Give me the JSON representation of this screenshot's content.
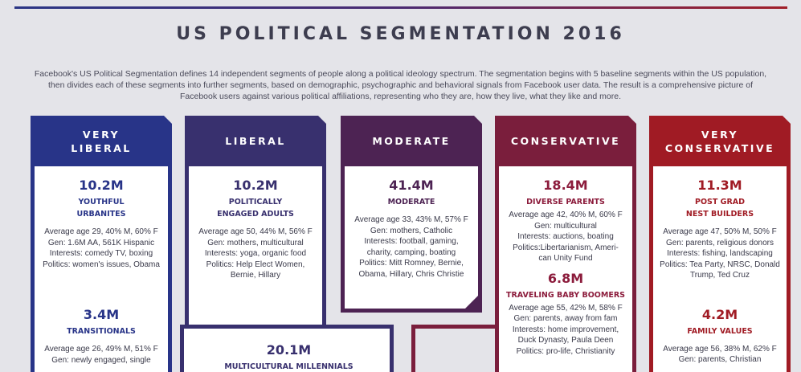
{
  "title": "US POLITICAL SEGMENTATION 2016",
  "intro": "Facebook's US Political Segmentation defines 14 independent segments of people along a political ideology spectrum. The segmentation begins with 5 baseline segments within the US population, then divides each of these segments into further segments, based on demographic, psychographic and behavioral signals from Facebook user data. The result is a comprehensive picture of Facebook users against various political affiliations, representing who they are, how they live, what they like and more.",
  "colors": {
    "very_liberal": "#283488",
    "liberal": "#38306e",
    "moderate": "#4d2353",
    "conservative": "#7a1e3c",
    "very_conservative": "#a01b24"
  },
  "columns": [
    {
      "header": "VERY\nLIBERAL",
      "segments": [
        {
          "count": "10.2M",
          "name": "YOUTHFUL\nURBANITES",
          "desc": "Average age 29, 40% M, 60% F\nGen: 1.6M AA, 561K Hispanic\nInterests: comedy TV, boxing\nPolitics: women's issues, Obama"
        },
        {
          "count": "3.4M",
          "name": "TRANSITIONALS",
          "desc": "Average age 26, 49% M, 51% F\nGen: newly engaged, single"
        }
      ]
    },
    {
      "header": "LIBERAL",
      "segments": [
        {
          "count": "10.2M",
          "name": "POLITICALLY\nENGAGED ADULTS",
          "desc": "Average age 50, 44% M, 56% F\nGen: mothers, multicultural\nInterests: yoga, organic food\nPolitics: Help Elect Women,\nBernie, Hillary"
        }
      ]
    },
    {
      "header": "MODERATE",
      "segments": [
        {
          "count": "41.4M",
          "name": "MODERATE",
          "desc": "Average age 33, 43% M, 57% F\nGen: mothers, Catholic\nInterests: football, gaming,\ncharity, camping, boating\nPolitics: Mitt Romney, Bernie,\nObama, Hillary, Chris Christie"
        }
      ]
    },
    {
      "header": "CONSERVATIVE",
      "segments": [
        {
          "count": "18.4M",
          "name": "DIVERSE PARENTS",
          "desc": "Average age 42, 40% M, 60% F\nGen: multicultural\nInterests: auctions, boating\nPolitics:Libertarianism, Ameri-\ncan Unity Fund"
        },
        {
          "count": "6.8M",
          "name": "TRAVELING BABY BOOMERS",
          "desc": "Average age 55, 42% M, 58% F\nGen: parents, away from fam\nInterests: home improvement,\nDuck Dynasty, Paula Deen\nPolitics: pro-life, Christianity"
        }
      ]
    },
    {
      "header": "VERY\nCONSERVATIVE",
      "segments": [
        {
          "count": "11.3M",
          "name": "POST GRAD\nNEST BUILDERS",
          "desc": "Average age 47, 50% M, 50% F\nGen: parents, religious donors\nInterests: fishing, landscaping\nPolitics: Tea Party, NRSC, Donald\nTrump, Ted Cruz"
        },
        {
          "count": "4.2M",
          "name": "FAMILY VALUES",
          "desc": "Average age 56, 38% M, 62% F\nGen: parents, Christian"
        }
      ]
    }
  ],
  "lower": {
    "count": "20.1M",
    "name": "MULTICULTURAL MILLENNIALS"
  }
}
